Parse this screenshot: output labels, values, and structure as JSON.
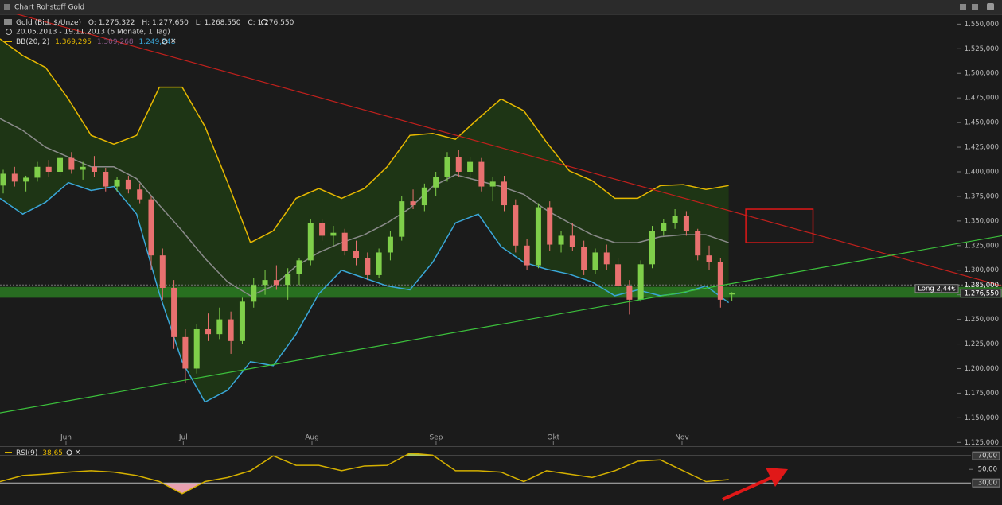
{
  "window_title": "Chart Rohstoff Gold",
  "chart_data": [
    {
      "type": "candlestick",
      "instrument": "Gold (Bid, $/Unze)",
      "ohlc_labels": [
        "O: 1.275,322",
        "H: 1.277,650",
        "L: 1.268,550",
        "C: 1.276,550"
      ],
      "period": "20.05.2013 - 19.11.2013 (6 Monate, 1 Tag)",
      "indicator": "BB(20, 2)",
      "indicator_values": [
        "1.369,295",
        "1.309,268",
        "1.249,241"
      ],
      "up_color": "#7fcf4a",
      "down_color": "#e8716f",
      "xlim": [
        0,
        88
      ],
      "xticks": [
        {
          "value": 5.8,
          "label": "Jun"
        },
        {
          "value": 16.1,
          "label": "Jul"
        },
        {
          "value": 27.4,
          "label": "Aug"
        },
        {
          "value": 38.3,
          "label": "Sep"
        },
        {
          "value": 48.6,
          "label": "Okt"
        },
        {
          "value": 59.9,
          "label": "Nov"
        }
      ],
      "ylim": [
        1122,
        1560
      ],
      "yticks": [
        {
          "value": 1550,
          "label": "1.550,000"
        },
        {
          "value": 1525,
          "label": "1.525,000"
        },
        {
          "value": 1500,
          "label": "1.500,000"
        },
        {
          "value": 1475,
          "label": "1.475,000"
        },
        {
          "value": 1450,
          "label": "1.450,000"
        },
        {
          "value": 1425,
          "label": "1.425,000"
        },
        {
          "value": 1400,
          "label": "1.400,000"
        },
        {
          "value": 1375,
          "label": "1.375,000"
        },
        {
          "value": 1350,
          "label": "1.350,000"
        },
        {
          "value": 1325,
          "label": "1.325,000"
        },
        {
          "value": 1300,
          "label": "1.300,000"
        },
        {
          "value": 1275,
          "label": "1.275,000"
        },
        {
          "value": 1250,
          "label": "1.250,000"
        },
        {
          "value": 1225,
          "label": "1.225,000"
        },
        {
          "value": 1200,
          "label": "1.200,000"
        },
        {
          "value": 1175,
          "label": "1.175,000"
        },
        {
          "value": 1150,
          "label": "1.150,000"
        },
        {
          "value": 1125,
          "label": "1.125,000"
        }
      ],
      "candles": [
        [
          1386,
          1402,
          1378,
          1398
        ],
        [
          1398,
          1405,
          1385,
          1390
        ],
        [
          1390,
          1396,
          1380,
          1394
        ],
        [
          1394,
          1410,
          1390,
          1405
        ],
        [
          1405,
          1412,
          1395,
          1400
        ],
        [
          1400,
          1418,
          1396,
          1414
        ],
        [
          1414,
          1420,
          1398,
          1402
        ],
        [
          1402,
          1410,
          1392,
          1405
        ],
        [
          1405,
          1416,
          1395,
          1400
        ],
        [
          1400,
          1404,
          1380,
          1385
        ],
        [
          1385,
          1395,
          1380,
          1392
        ],
        [
          1392,
          1396,
          1378,
          1382
        ],
        [
          1382,
          1388,
          1368,
          1372
        ],
        [
          1372,
          1375,
          1300,
          1315
        ],
        [
          1315,
          1322,
          1270,
          1282
        ],
        [
          1282,
          1290,
          1220,
          1232
        ],
        [
          1232,
          1240,
          1185,
          1200
        ],
        [
          1200,
          1245,
          1195,
          1240
        ],
        [
          1240,
          1256,
          1228,
          1235
        ],
        [
          1235,
          1262,
          1230,
          1250
        ],
        [
          1250,
          1258,
          1215,
          1228
        ],
        [
          1228,
          1272,
          1225,
          1268
        ],
        [
          1268,
          1292,
          1262,
          1285
        ],
        [
          1285,
          1300,
          1275,
          1290
        ],
        [
          1290,
          1305,
          1280,
          1285
        ],
        [
          1285,
          1302,
          1270,
          1296
        ],
        [
          1296,
          1312,
          1285,
          1310
        ],
        [
          1310,
          1352,
          1305,
          1348
        ],
        [
          1348,
          1352,
          1330,
          1335
        ],
        [
          1335,
          1345,
          1325,
          1338
        ],
        [
          1338,
          1342,
          1315,
          1320
        ],
        [
          1320,
          1330,
          1305,
          1312
        ],
        [
          1312,
          1318,
          1290,
          1295
        ],
        [
          1295,
          1322,
          1292,
          1318
        ],
        [
          1318,
          1340,
          1310,
          1334
        ],
        [
          1334,
          1375,
          1330,
          1370
        ],
        [
          1370,
          1382,
          1362,
          1366
        ],
        [
          1366,
          1388,
          1360,
          1384
        ],
        [
          1384,
          1400,
          1375,
          1395
        ],
        [
          1395,
          1420,
          1390,
          1415
        ],
        [
          1415,
          1422,
          1395,
          1400
        ],
        [
          1400,
          1415,
          1392,
          1410
        ],
        [
          1410,
          1414,
          1380,
          1385
        ],
        [
          1385,
          1395,
          1370,
          1390
        ],
        [
          1390,
          1396,
          1360,
          1366
        ],
        [
          1366,
          1372,
          1318,
          1325
        ],
        [
          1325,
          1332,
          1300,
          1305
        ],
        [
          1305,
          1368,
          1302,
          1364
        ],
        [
          1364,
          1370,
          1320,
          1326
        ],
        [
          1326,
          1340,
          1318,
          1335
        ],
        [
          1335,
          1348,
          1320,
          1324
        ],
        [
          1324,
          1330,
          1295,
          1300
        ],
        [
          1300,
          1322,
          1296,
          1318
        ],
        [
          1318,
          1326,
          1300,
          1306
        ],
        [
          1306,
          1312,
          1280,
          1284
        ],
        [
          1284,
          1290,
          1255,
          1270
        ],
        [
          1270,
          1310,
          1268,
          1306
        ],
        [
          1306,
          1345,
          1302,
          1340
        ],
        [
          1340,
          1352,
          1335,
          1348
        ],
        [
          1348,
          1362,
          1342,
          1355
        ],
        [
          1355,
          1360,
          1335,
          1340
        ],
        [
          1340,
          1342,
          1310,
          1315
        ],
        [
          1315,
          1325,
          1300,
          1308
        ],
        [
          1308,
          1312,
          1262,
          1270
        ],
        [
          1275.322,
          1277.65,
          1268.55,
          1276.55
        ]
      ],
      "bands": {
        "x": [
          0,
          2,
          4,
          6,
          8,
          10,
          12,
          14,
          16,
          18,
          20,
          22,
          24,
          26,
          28,
          30,
          32,
          34,
          36,
          38,
          40,
          42,
          44,
          46,
          48,
          50,
          52,
          54,
          56,
          58,
          60,
          62,
          64
        ],
        "fill": "#1f3a14",
        "upper": {
          "color": "#e6b800",
          "values": [
            1535,
            1518,
            1506,
            1474,
            1437,
            1428,
            1437,
            1486,
            1486,
            1446,
            1389,
            1328,
            1340,
            1373,
            1383,
            1373,
            1383,
            1405,
            1437,
            1439,
            1433,
            1454,
            1474,
            1462,
            1430,
            1401,
            1391,
            1373,
            1373,
            1386,
            1387,
            1382,
            1386
          ]
        },
        "middle": {
          "color": "#8a8a8a",
          "values": [
            1454,
            1442,
            1425,
            1415,
            1405,
            1405,
            1393,
            1366,
            1340,
            1312,
            1288,
            1274,
            1284,
            1304,
            1318,
            1328,
            1336,
            1348,
            1363,
            1385,
            1397,
            1391,
            1385,
            1377,
            1361,
            1348,
            1336,
            1328,
            1328,
            1334,
            1336,
            1336,
            1328
          ]
        },
        "lower": {
          "color": "#3aa6d8",
          "values": [
            1373,
            1357,
            1369,
            1389,
            1381,
            1385,
            1357,
            1276,
            1207,
            1166,
            1178,
            1207,
            1203,
            1235,
            1276,
            1300,
            1292,
            1284,
            1280,
            1308,
            1348,
            1357,
            1324,
            1308,
            1301,
            1296,
            1288,
            1274,
            1280,
            1274,
            1277,
            1284,
            1267
          ]
        }
      },
      "trendlines": [
        {
          "color": "#c0201c",
          "x": [
            0,
            88
          ],
          "y": [
            1565,
            1284
          ]
        },
        {
          "color": "#3cc23c",
          "x": [
            0,
            88
          ],
          "y": [
            1155,
            1335
          ]
        }
      ],
      "zone": {
        "color": "#2a7a22",
        "y": [
          1272,
          1283
        ]
      },
      "box": {
        "color": "#e01818",
        "x": [
          65.5,
          71.4
        ],
        "y": [
          1328,
          1362
        ]
      },
      "price_line": {
        "value": 1285,
        "label": "1.285,000"
      },
      "last_price": {
        "value": 1276.55,
        "label": "1.276,550"
      },
      "position_label": "Long 2,44€"
    },
    {
      "type": "line",
      "title": "RSI(9)",
      "value_text": "38,65",
      "color": "#d4b000",
      "xlim": [
        0,
        88
      ],
      "x": [
        0,
        2,
        4,
        6,
        8,
        10,
        12,
        14,
        16,
        18,
        20,
        22,
        24,
        26,
        28,
        30,
        32,
        34,
        36,
        38,
        40,
        42,
        44,
        46,
        48,
        50,
        52,
        54,
        56,
        58,
        60,
        62,
        64
      ],
      "values": [
        32,
        41,
        43,
        46,
        48,
        46,
        41,
        32,
        14,
        32,
        38,
        48,
        70,
        56,
        56,
        48,
        55,
        56,
        74,
        71,
        48,
        48,
        46,
        32,
        48,
        43,
        38,
        48,
        62,
        64,
        48,
        32,
        35
      ],
      "ylim": [
        2,
        82
      ],
      "yticks": [
        {
          "value": 70,
          "label": "70,00"
        },
        {
          "value": 50,
          "label": "50,00"
        },
        {
          "value": 30,
          "label": "30,00"
        }
      ]
    }
  ]
}
